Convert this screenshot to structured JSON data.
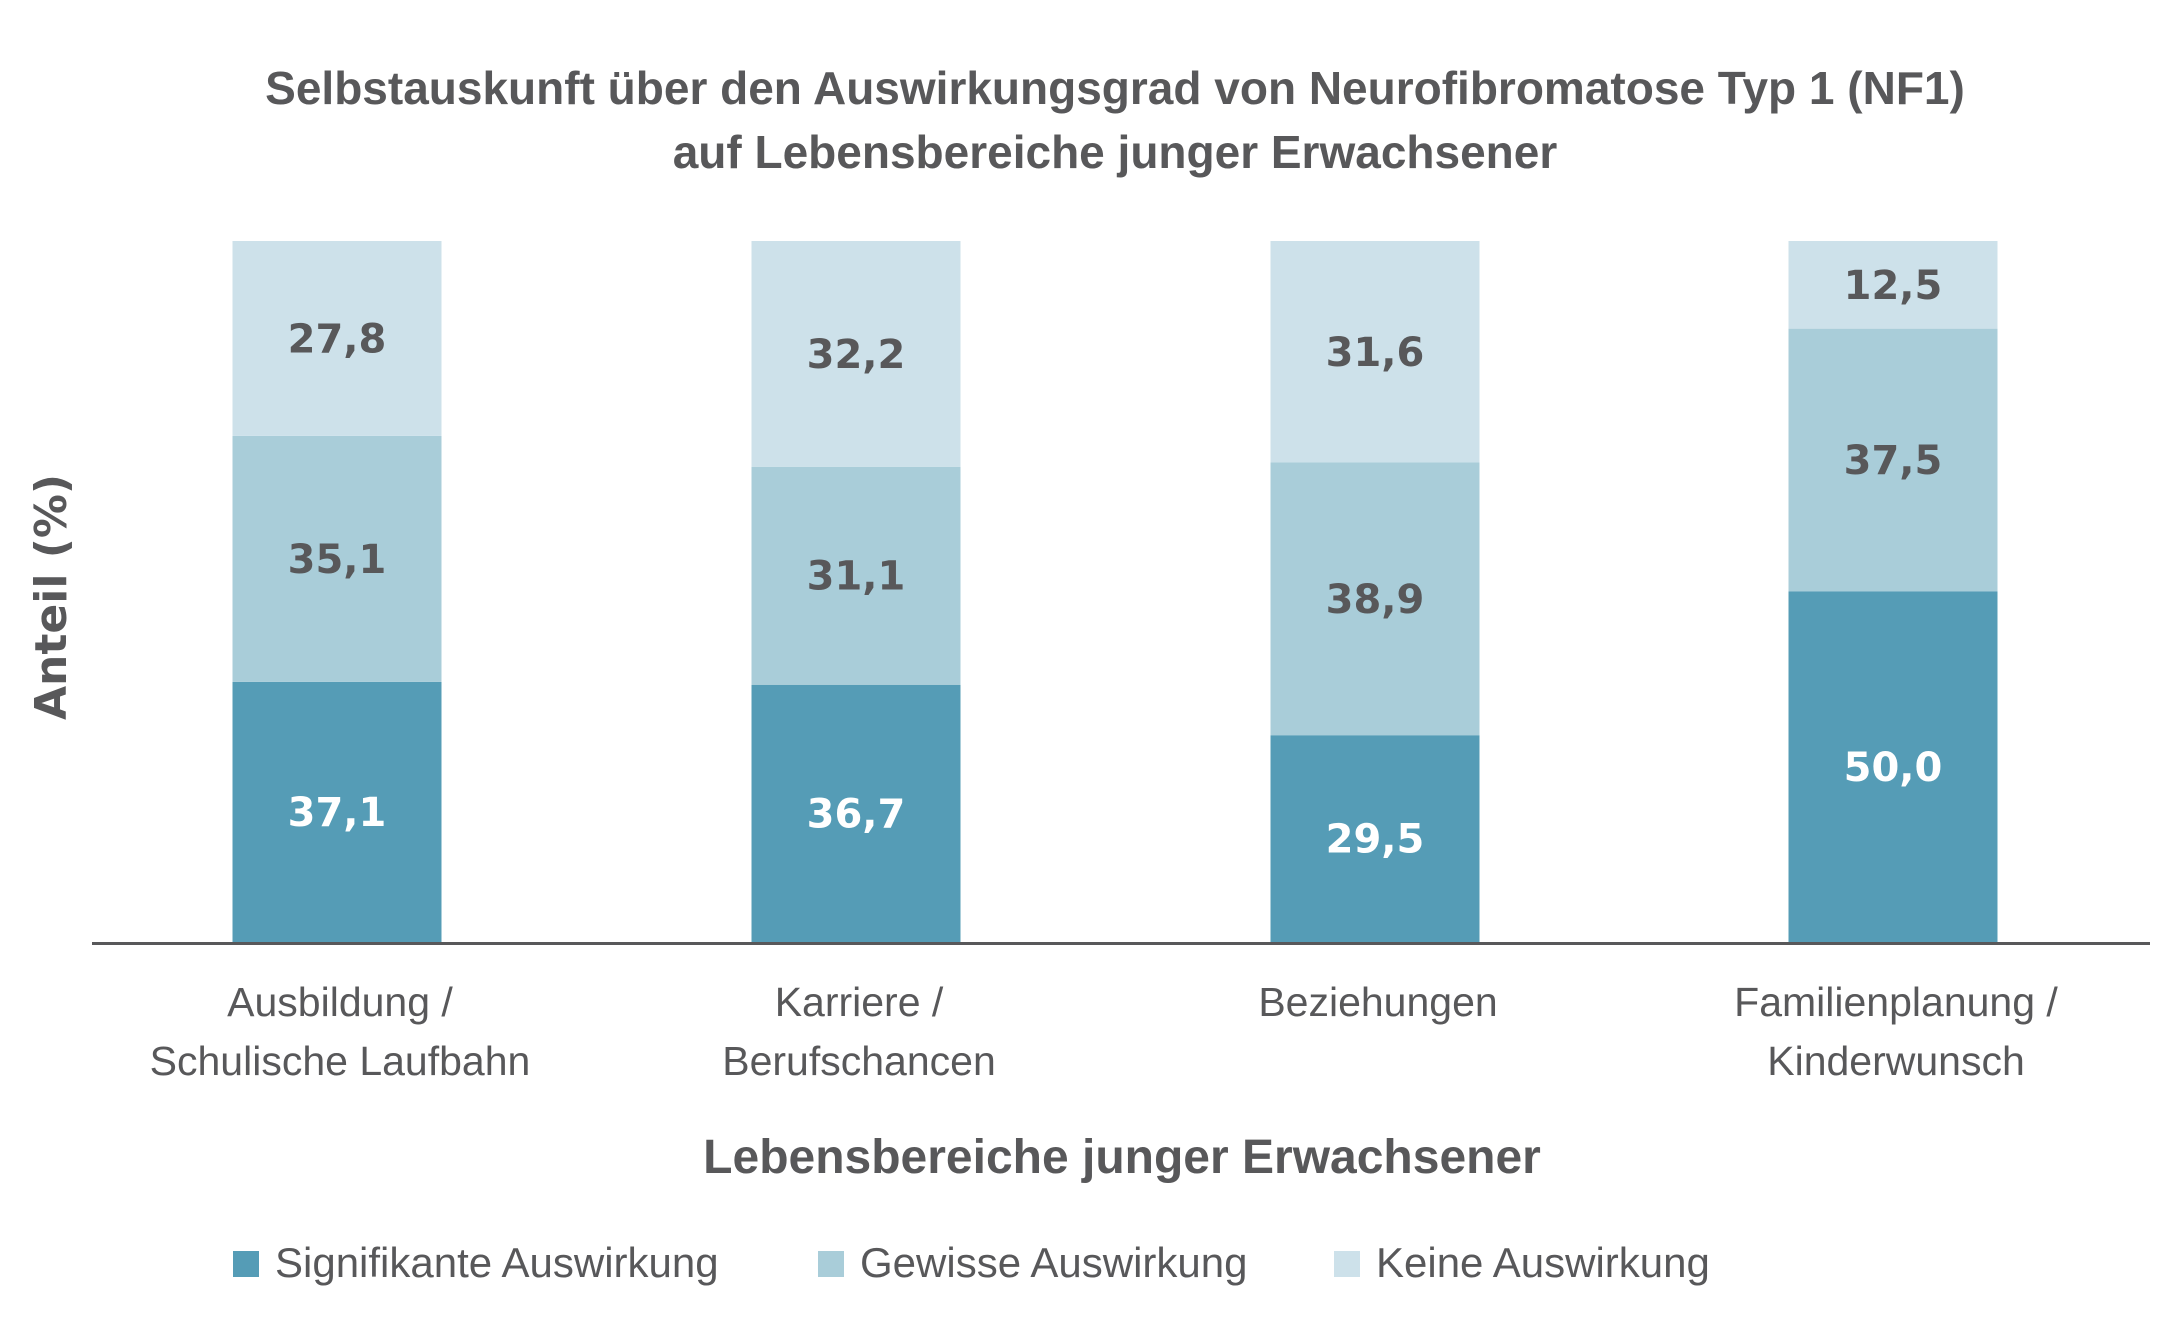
{
  "chart_data": {
    "type": "bar",
    "stacked": true,
    "title": "Selbstauskunft über den Auswirkungsgrad von Neurofibromatose Typ 1 (NF1) auf Lebensbereiche junger Erwachsener",
    "title_lines": [
      "Selbstauskunft über den Auswirkungsgrad von Neurofibromatose Typ 1 (NF1)",
      "auf Lebensbereiche junger Erwachsener"
    ],
    "xlabel": "Lebensbereiche junger Erwachsener",
    "ylabel": "Anteil (%)",
    "ylim": [
      0,
      100
    ],
    "grid": false,
    "categories": [
      "Ausbildung / Schulische Laufbahn",
      "Karriere / Berufschancen",
      "Beziehungen",
      "Familienplanung / Kinderwunsch"
    ],
    "category_lines": [
      [
        "Ausbildung /",
        "Schulische Laufbahn"
      ],
      [
        "Karriere /",
        "Berufschancen"
      ],
      [
        "Beziehungen"
      ],
      [
        "Familienplanung /",
        "Kinderwunsch"
      ]
    ],
    "series": [
      {
        "name": "Signifikante Auswirkung",
        "color": "#559cb6",
        "label_color": "#ffffff",
        "values": [
          37.1,
          36.7,
          29.5,
          50.0
        ],
        "labels": [
          "37,1",
          "36,7",
          "29,5",
          "50,0"
        ]
      },
      {
        "name": "Gewisse Auswirkung",
        "color": "#a9cdd9",
        "label_color": "#58585a",
        "values": [
          35.1,
          31.1,
          38.9,
          37.5
        ],
        "labels": [
          "35,1",
          "31,1",
          "38,9",
          "37,5"
        ]
      },
      {
        "name": "Keine Auswirkung",
        "color": "#cde1ea",
        "label_color": "#58585a",
        "values": [
          27.8,
          32.2,
          31.6,
          12.5
        ],
        "labels": [
          "27,8",
          "32,2",
          "31,6",
          "12,5"
        ]
      }
    ],
    "legend": {
      "position": "bottom",
      "items": [
        "Signifikante Auswirkung",
        "Gewisse Auswirkung",
        "Keine Auswirkung"
      ]
    },
    "colors": {
      "text": "#58585a",
      "axis": "#58585a"
    }
  }
}
